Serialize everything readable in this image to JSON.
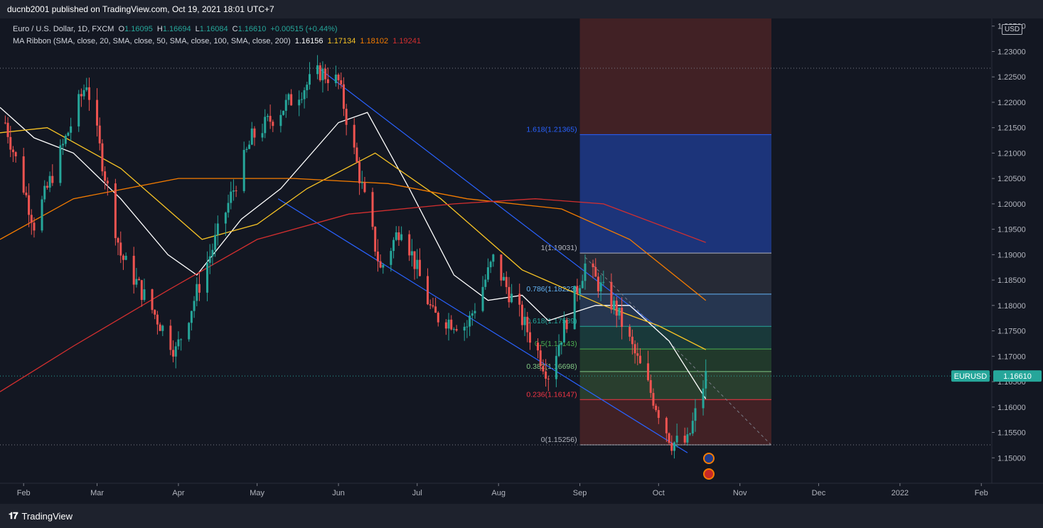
{
  "header": {
    "publisher": "ducnb2001 published on TradingView.com, Oct 19, 2021 18:01 UTC+7"
  },
  "legend": {
    "symbol": "Euro / U.S. Dollar, 1D, FXCM",
    "open_label": "O",
    "open": "1.16095",
    "high_label": "H",
    "high": "1.16694",
    "low_label": "L",
    "low": "1.16084",
    "close_label": "C",
    "close": "1.16610",
    "change": "+0.00515 (+0.44%)",
    "ma_label": "MA Ribbon (SMA, close, 20, SMA, close, 50, SMA, close, 100, SMA, close, 200)",
    "ma20": "1.16156",
    "ma50": "1.17134",
    "ma100": "1.18102",
    "ma200": "1.19241"
  },
  "price_axis": {
    "currency": "USD",
    "labels": [
      "1.23500",
      "1.23000",
      "1.22500",
      "1.22000",
      "1.21500",
      "1.21000",
      "1.20500",
      "1.20000",
      "1.19500",
      "1.19000",
      "1.18500",
      "1.18000",
      "1.17500",
      "1.17000",
      "1.16500",
      "1.16000",
      "1.15500",
      "1.15000"
    ]
  },
  "time_axis": {
    "labels": [
      "Feb",
      "Mar",
      "Apr",
      "May",
      "Jun",
      "Jul",
      "Aug",
      "Sep",
      "Oct",
      "Nov",
      "Dec",
      "2022",
      "Feb"
    ]
  },
  "price_tag": {
    "symbol": "EURUSD",
    "value": "1.16610"
  },
  "footer": {
    "brand": "TradingView",
    "brand_icon": "tradingview-logo-icon"
  },
  "colors": {
    "background": "#131722",
    "up": "#26a69a",
    "down": "#ef5350",
    "ma20": "#ffffff",
    "ma50": "#f7c325",
    "ma100": "#f57c00",
    "ma200": "#d32f2f",
    "channel": "#2962ff"
  },
  "chart_data": {
    "type": "candlestick",
    "title": "Euro / U.S. Dollar, 1D, FXCM",
    "ylim": [
      1.145,
      1.2365
    ],
    "x_range": [
      "2021-01-23",
      "2022-02-05"
    ],
    "grid": false,
    "legend_position": "top-left",
    "series": [
      {
        "name": "Price (OHLC)",
        "keypoints": [
          [
            "2021-01-25",
            1.216
          ],
          [
            "2021-02-05",
            1.196
          ],
          [
            "2021-02-25",
            1.224
          ],
          [
            "2021-03-10",
            1.19
          ],
          [
            "2021-03-31",
            1.171
          ],
          [
            "2021-04-29",
            1.213
          ],
          [
            "2021-05-25",
            1.226
          ],
          [
            "2021-06-01",
            1.224
          ],
          [
            "2021-06-17",
            1.187
          ],
          [
            "2021-06-25",
            1.196
          ],
          [
            "2021-07-07",
            1.178
          ],
          [
            "2021-07-20",
            1.176
          ],
          [
            "2021-07-30",
            1.189
          ],
          [
            "2021-08-20",
            1.1665
          ],
          [
            "2021-09-03",
            1.188
          ],
          [
            "2021-09-15",
            1.179
          ],
          [
            "2021-10-06",
            1.153
          ],
          [
            "2021-10-12",
            1.153
          ],
          [
            "2021-10-19",
            1.1661
          ]
        ]
      },
      {
        "name": "MA 20",
        "keypoints": [
          [
            "2021-01-23",
            1.219
          ],
          [
            "2021-02-05",
            1.213
          ],
          [
            "2021-02-20",
            1.21
          ],
          [
            "2021-03-10",
            1.201
          ],
          [
            "2021-03-28",
            1.19
          ],
          [
            "2021-04-08",
            1.186
          ],
          [
            "2021-04-25",
            1.197
          ],
          [
            "2021-05-10",
            1.203
          ],
          [
            "2021-06-01",
            1.216
          ],
          [
            "2021-06-12",
            1.218
          ],
          [
            "2021-06-28",
            1.203
          ],
          [
            "2021-07-15",
            1.186
          ],
          [
            "2021-07-28",
            1.181
          ],
          [
            "2021-08-10",
            1.182
          ],
          [
            "2021-08-20",
            1.177
          ],
          [
            "2021-09-07",
            1.18
          ],
          [
            "2021-09-20",
            1.18
          ],
          [
            "2021-10-05",
            1.173
          ],
          [
            "2021-10-19",
            1.1616
          ]
        ]
      },
      {
        "name": "MA 50",
        "keypoints": [
          [
            "2021-01-23",
            1.214
          ],
          [
            "2021-02-10",
            1.215
          ],
          [
            "2021-03-10",
            1.207
          ],
          [
            "2021-04-10",
            1.193
          ],
          [
            "2021-05-01",
            1.196
          ],
          [
            "2021-05-20",
            1.203
          ],
          [
            "2021-06-15",
            1.21
          ],
          [
            "2021-07-10",
            1.201
          ],
          [
            "2021-08-10",
            1.187
          ],
          [
            "2021-09-10",
            1.18
          ],
          [
            "2021-10-01",
            1.176
          ],
          [
            "2021-10-19",
            1.1713
          ]
        ]
      },
      {
        "name": "MA 100",
        "keypoints": [
          [
            "2021-01-23",
            1.193
          ],
          [
            "2021-02-20",
            1.201
          ],
          [
            "2021-04-01",
            1.205
          ],
          [
            "2021-05-15",
            1.205
          ],
          [
            "2021-06-20",
            1.204
          ],
          [
            "2021-07-20",
            1.201
          ],
          [
            "2021-08-25",
            1.199
          ],
          [
            "2021-09-20",
            1.193
          ],
          [
            "2021-10-19",
            1.181
          ]
        ]
      },
      {
        "name": "MA 200",
        "keypoints": [
          [
            "2021-01-23",
            1.163
          ],
          [
            "2021-02-20",
            1.172
          ],
          [
            "2021-03-28",
            1.183
          ],
          [
            "2021-05-01",
            1.193
          ],
          [
            "2021-06-05",
            1.198
          ],
          [
            "2021-07-15",
            1.2
          ],
          [
            "2021-08-15",
            1.201
          ],
          [
            "2021-09-10",
            1.2
          ],
          [
            "2021-10-19",
            1.1924
          ]
        ]
      }
    ],
    "fibonacci": {
      "levels": [
        {
          "ratio": "1.618",
          "price": 1.21365,
          "label": "1.618(1.21365)",
          "color": "#2962ff"
        },
        {
          "ratio": "1",
          "price": 1.19031,
          "label": "1(1.19031)",
          "color": "#b2b5be"
        },
        {
          "ratio": "0.786",
          "price": 1.18223,
          "label": "0.786(1.18223)",
          "color": "#64b5f6"
        },
        {
          "ratio": "0.618",
          "price": 1.17589,
          "label": "0.618(1.17589)",
          "color": "#26a69a"
        },
        {
          "ratio": "0.5",
          "price": 1.17143,
          "label": "0.5(1.17143)",
          "color": "#4caf50"
        },
        {
          "ratio": "0.382",
          "price": 1.16698,
          "label": "0.382(1.16698)",
          "color": "#81c784"
        },
        {
          "ratio": "0.236",
          "price": 1.16147,
          "label": "0.236(1.16147)",
          "color": "#f23645"
        },
        {
          "ratio": "0",
          "price": 1.15256,
          "label": "0(1.15256)",
          "color": "#b2b5be"
        }
      ]
    },
    "channel": [
      {
        "from": [
          "2021-05-25",
          1.2265
        ],
        "to": [
          "2021-09-30",
          1.176
        ]
      },
      {
        "from": [
          "2021-05-09",
          1.201
        ],
        "to": [
          "2021-10-12",
          1.151
        ]
      }
    ],
    "last_price": 1.1661,
    "high_line": 1.2267,
    "low_line": 1.15256
  }
}
